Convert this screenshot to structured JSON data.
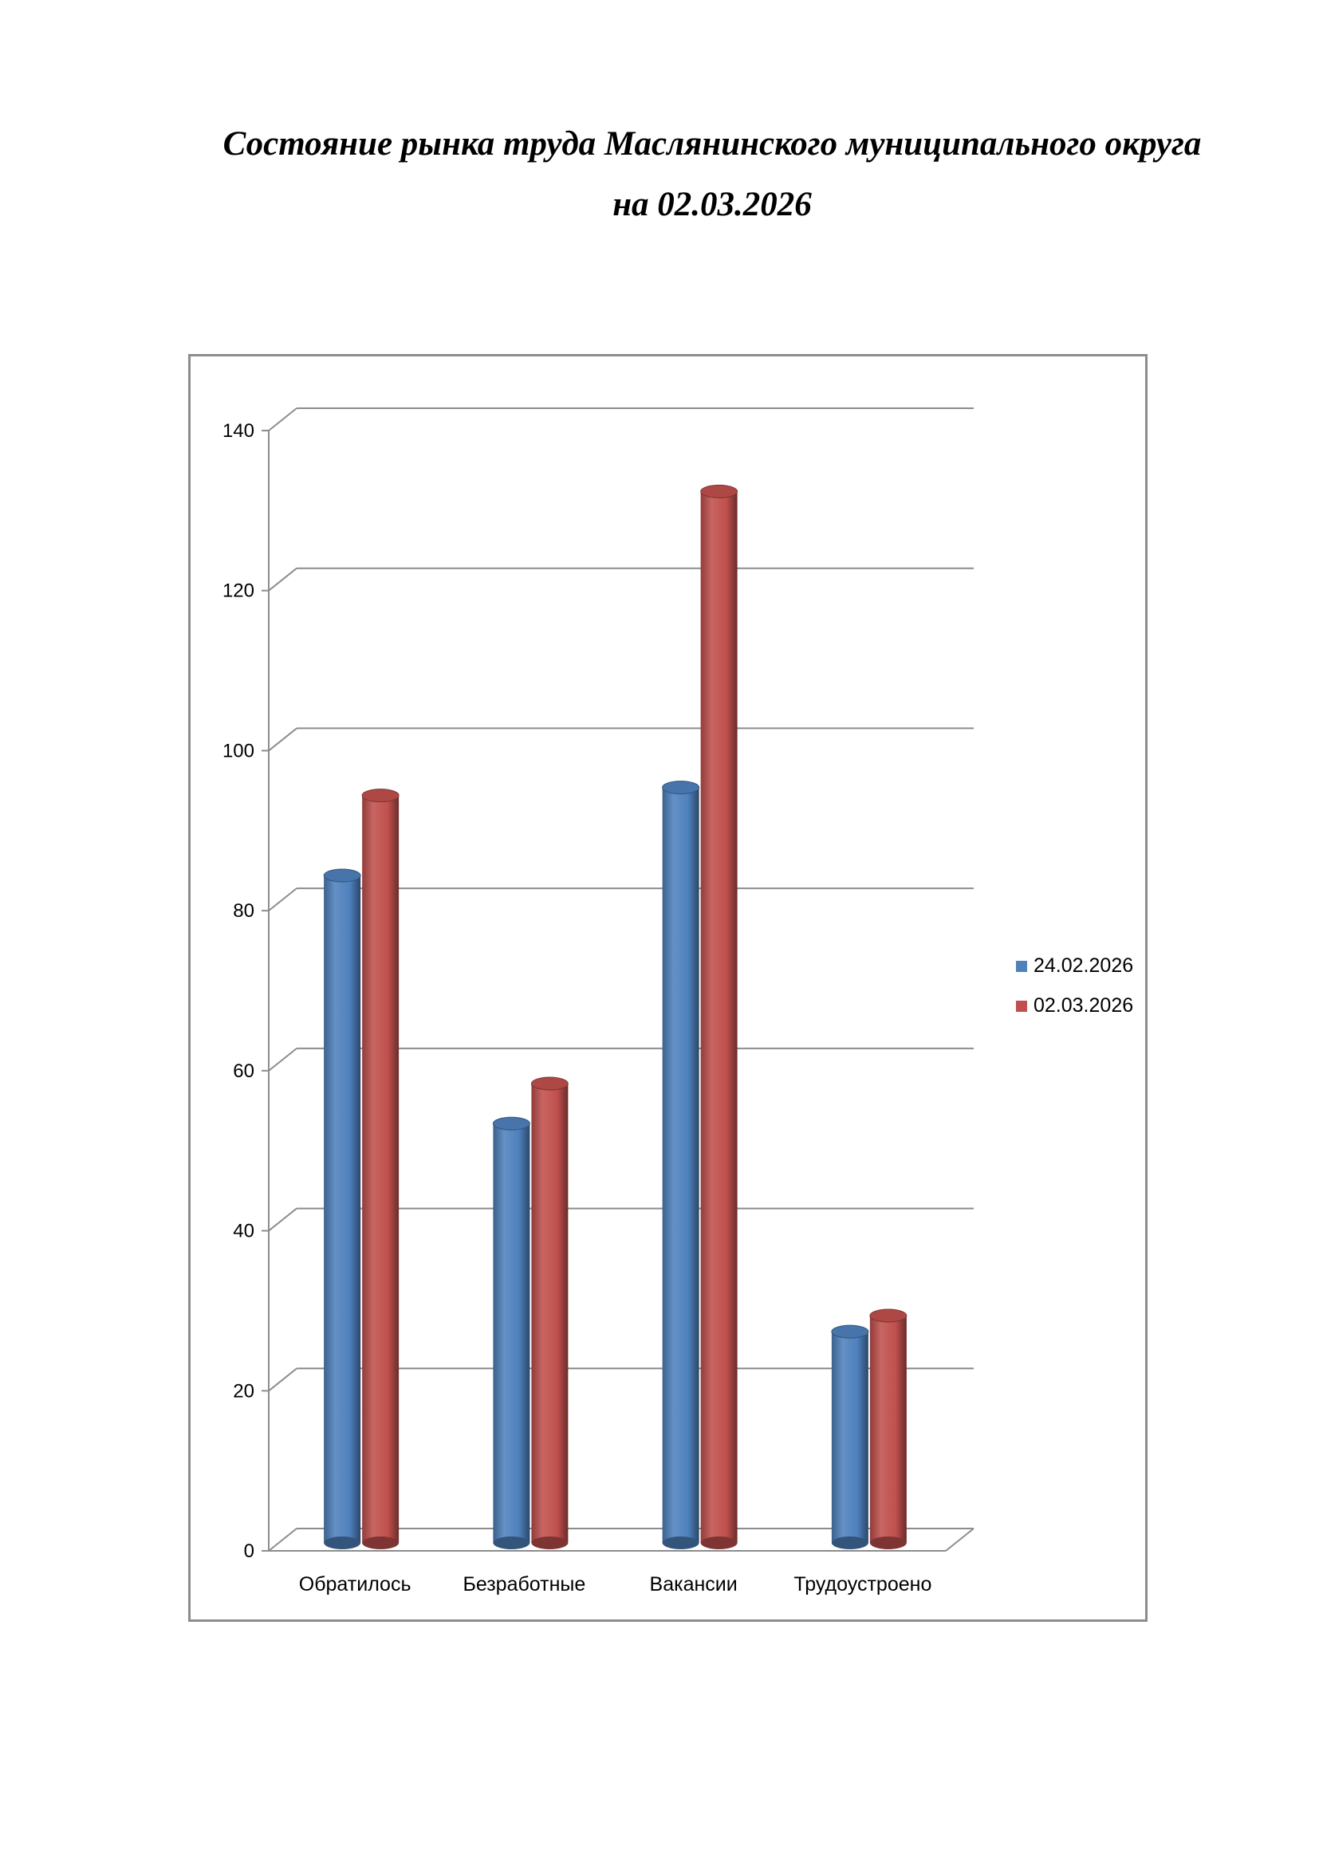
{
  "page": {
    "title_line1": "Состояние рынка труда Маслянинского муниципального округа",
    "title_line2": "на 02.03.2026"
  },
  "chart_data": {
    "type": "bar",
    "categories": [
      "Обратилось",
      "Безработные",
      "Вакансии",
      "Трудоустроено"
    ],
    "series": [
      {
        "name": "24.02.2026",
        "values": [
          83,
          52,
          94,
          26
        ],
        "color": "#4f81bd"
      },
      {
        "name": "02.03.2026",
        "values": [
          93,
          57,
          131,
          28
        ],
        "color": "#c0504d"
      }
    ],
    "ylim": [
      0,
      140
    ],
    "yticks": [
      "0",
      "20",
      "40",
      "60",
      "80",
      "100",
      "120",
      "140"
    ],
    "grid": true,
    "legend_position": "right"
  }
}
